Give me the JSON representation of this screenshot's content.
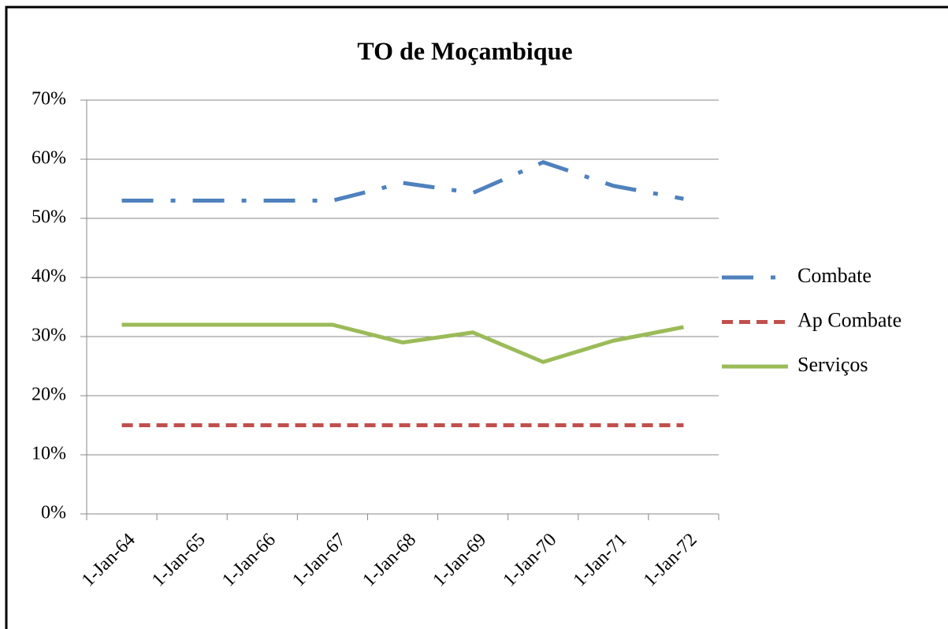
{
  "chart_data": {
    "type": "line",
    "title": "TO de Moçambique",
    "categories": [
      "1-Jan-64",
      "1-Jan-65",
      "1-Jan-66",
      "1-Jan-67",
      "1-Jan-68",
      "1-Jan-69",
      "1-Jan-70",
      "1-Jan-71",
      "1-Jan-72"
    ],
    "series": [
      {
        "name": "Combate",
        "color": "#4f81bd",
        "style": "dash-dot",
        "values": [
          53,
          53,
          53,
          53,
          56,
          54.3,
          59.5,
          55.5,
          53.3
        ]
      },
      {
        "name": "Ap Combate",
        "color": "#c0504d",
        "style": "dash",
        "values": [
          15,
          15,
          15,
          15,
          15,
          15,
          15,
          15,
          15
        ]
      },
      {
        "name": "Serviços",
        "color": "#9bbb59",
        "style": "solid",
        "values": [
          32,
          32,
          32,
          32,
          29,
          30.7,
          25.7,
          29.3,
          31.6
        ]
      }
    ],
    "ylim": [
      0,
      70
    ],
    "yticks": [
      {
        "value": 0,
        "label": "0%"
      },
      {
        "value": 10,
        "label": "10%"
      },
      {
        "value": 20,
        "label": "20%"
      },
      {
        "value": 30,
        "label": "30%"
      },
      {
        "value": 40,
        "label": "40%"
      },
      {
        "value": 50,
        "label": "50%"
      },
      {
        "value": 60,
        "label": "60%"
      },
      {
        "value": 70,
        "label": "70%"
      }
    ],
    "grid": true,
    "legend": "right"
  }
}
